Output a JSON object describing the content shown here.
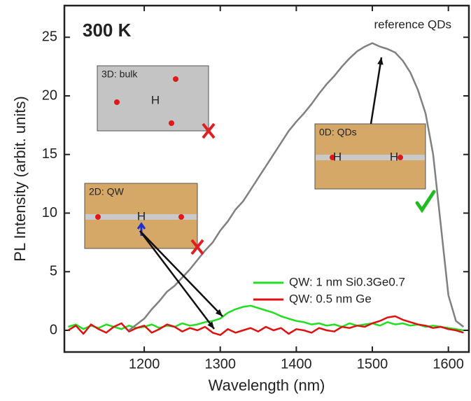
{
  "chart_data": {
    "type": "line",
    "title": "300 K",
    "xlabel": "Wavelength (nm)",
    "ylabel": "PL Intensity (arbit. units)",
    "xlim": [
      1095,
      1627
    ],
    "ylim": [
      -1.85,
      27.7
    ],
    "xticks": [
      1200,
      1300,
      1400,
      1500,
      1600
    ],
    "yticks": [
      0,
      5,
      10,
      15,
      20,
      25
    ],
    "x": [
      1100,
      1110,
      1120,
      1130,
      1140,
      1150,
      1160,
      1170,
      1180,
      1190,
      1200,
      1210,
      1220,
      1230,
      1240,
      1250,
      1260,
      1270,
      1280,
      1290,
      1300,
      1310,
      1320,
      1330,
      1340,
      1350,
      1360,
      1370,
      1380,
      1390,
      1400,
      1410,
      1420,
      1430,
      1440,
      1450,
      1460,
      1470,
      1480,
      1490,
      1500,
      1510,
      1520,
      1530,
      1540,
      1550,
      1560,
      1570,
      1580,
      1590,
      1600,
      1610,
      1620
    ],
    "series": [
      {
        "name": "reference QDs",
        "color": "#808080",
        "values": [
          null,
          null,
          null,
          null,
          null,
          null,
          null,
          null,
          0,
          0.5,
          1,
          1.8,
          2.5,
          3.3,
          3.8,
          4.5,
          5.2,
          6,
          6.8,
          7.5,
          8.5,
          9.3,
          10.3,
          11,
          12,
          13,
          14,
          15,
          16,
          17,
          17.8,
          18.5,
          19.3,
          20.2,
          21,
          21.7,
          22.5,
          23.2,
          23.8,
          24.2,
          24.5,
          24.2,
          24,
          23.7,
          23,
          22,
          20.5,
          18.5,
          15,
          9,
          3,
          0.8,
          0.3
        ]
      },
      {
        "name": "QW: 1 nm Si0.3Ge0.7",
        "color": "#22dd22",
        "values": [
          0.3,
          0.5,
          0.1,
          0.4,
          0.2,
          0.5,
          0.3,
          0.1,
          0.4,
          0.2,
          0.3,
          0.5,
          0.2,
          0.4,
          0.3,
          0.6,
          0.4,
          0.5,
          0.7,
          0.8,
          1,
          1.5,
          1.8,
          2,
          2.1,
          1.9,
          1.7,
          1.5,
          1.2,
          1,
          0.8,
          0.7,
          0.5,
          0.6,
          0.4,
          0.5,
          0.3,
          0.6,
          0.4,
          0.5,
          0.6,
          0.4,
          0.7,
          0.5,
          0.6,
          0.4,
          0.5,
          0.3,
          0.4,
          0.3,
          0.2,
          0.1,
          0
        ]
      },
      {
        "name": "QW: 0.5 nm Ge",
        "color": "#dd1111",
        "values": [
          0,
          0.4,
          -0.3,
          0.5,
          0.1,
          -0.2,
          0.3,
          0.6,
          -0.1,
          0.2,
          0.4,
          -0.2,
          0.1,
          0.5,
          0.3,
          -0.1,
          0.2,
          0,
          0.3,
          -0.2,
          -0.4,
          0.1,
          -0.2,
          0,
          0.2,
          -0.1,
          0.3,
          0,
          0.2,
          -0.3,
          0.1,
          0,
          -0.2,
          0.2,
          0,
          -0.1,
          0.3,
          0.2,
          0.4,
          0.3,
          0.6,
          0.8,
          1.1,
          1.2,
          0.9,
          0.7,
          0.5,
          0.4,
          0.2,
          0.3,
          0.1,
          0,
          -0.2
        ]
      }
    ],
    "insets": [
      {
        "label": "3D: bulk",
        "mark": "H"
      },
      {
        "label": "2D: QW",
        "mark": "H"
      },
      {
        "label": "0D: QDs",
        "mark": "H"
      }
    ]
  }
}
